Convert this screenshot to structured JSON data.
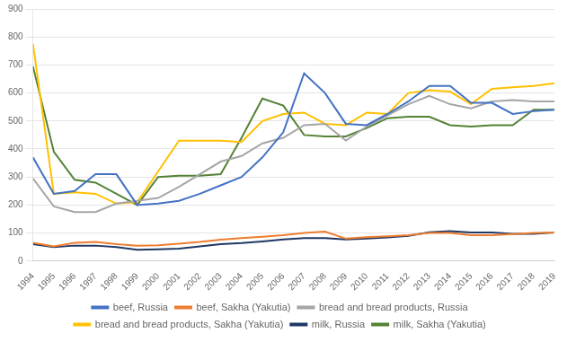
{
  "chart_data": {
    "type": "line",
    "x": [
      1994,
      1995,
      1996,
      1997,
      1998,
      1999,
      2000,
      2001,
      2002,
      2003,
      2004,
      2005,
      2006,
      2007,
      2008,
      2009,
      2010,
      2011,
      2012,
      2013,
      2014,
      2015,
      2016,
      2017,
      2018,
      2019
    ],
    "series": [
      {
        "name": "beef, Russia",
        "color": "#4472C4",
        "values": [
          370,
          240,
          250,
          310,
          310,
          200,
          205,
          215,
          240,
          270,
          300,
          370,
          460,
          670,
          600,
          490,
          485,
          525,
          570,
          625,
          625,
          565,
          565,
          525,
          535,
          540
        ]
      },
      {
        "name": "beef, Sakha (Yakutia)",
        "color": "#ED7D31",
        "values": [
          65,
          52,
          65,
          68,
          60,
          55,
          56,
          62,
          68,
          76,
          82,
          87,
          92,
          100,
          105,
          80,
          85,
          88,
          92,
          100,
          100,
          92,
          92,
          96,
          100,
          102
        ]
      },
      {
        "name": "bread and bread products, Russia",
        "color": "#A5A5A5",
        "values": [
          295,
          195,
          175,
          175,
          205,
          215,
          225,
          265,
          310,
          355,
          375,
          420,
          440,
          485,
          490,
          430,
          480,
          520,
          560,
          590,
          560,
          545,
          570,
          575,
          570,
          570
        ]
      },
      {
        "name": "bread and bread products, Sakha (Yakutia)",
        "color": "#FFC000",
        "values": [
          775,
          240,
          245,
          240,
          205,
          210,
          320,
          430,
          430,
          430,
          425,
          500,
          525,
          530,
          490,
          485,
          530,
          525,
          600,
          610,
          605,
          560,
          615,
          620,
          625,
          635
        ]
      },
      {
        "name": "milk, Russia",
        "color": "#1F3864",
        "values": [
          60,
          50,
          55,
          55,
          50,
          40,
          42,
          44,
          52,
          60,
          64,
          70,
          77,
          82,
          82,
          77,
          80,
          84,
          90,
          103,
          107,
          102,
          102,
          97,
          97,
          102
        ]
      },
      {
        "name": "milk, Sakha (Yakutia)",
        "color": "#548235",
        "values": [
          695,
          390,
          290,
          280,
          240,
          200,
          300,
          305,
          305,
          310,
          440,
          580,
          555,
          450,
          445,
          445,
          475,
          510,
          515,
          515,
          485,
          480,
          485,
          485,
          540,
          540
        ]
      }
    ],
    "xlim": [
      1994,
      2019
    ],
    "xticks": [
      1994,
      1995,
      1996,
      1997,
      1998,
      1999,
      2000,
      2001,
      2002,
      2003,
      2004,
      2005,
      2006,
      2007,
      2008,
      2009,
      2010,
      2011,
      2012,
      2013,
      2014,
      2015,
      2016,
      2017,
      2018,
      2019
    ],
    "ylim": [
      0,
      900
    ],
    "yticks": [
      0,
      100,
      200,
      300,
      400,
      500,
      600,
      700,
      800,
      900
    ],
    "grid": true,
    "legend": "bottom"
  }
}
